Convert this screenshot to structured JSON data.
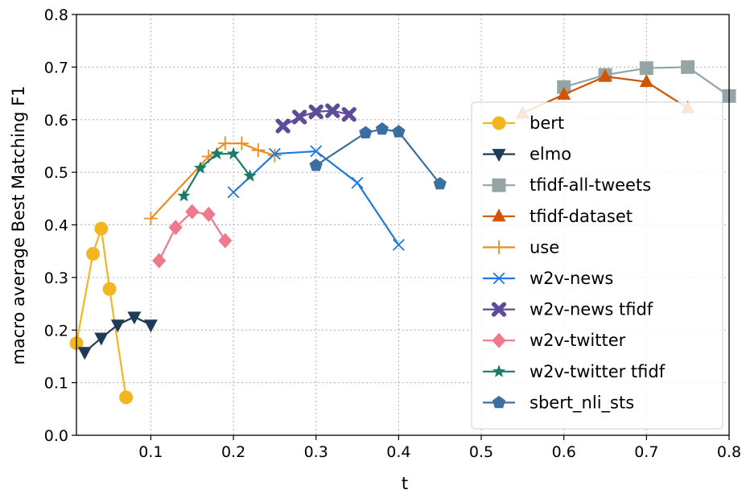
{
  "chart_data": {
    "type": "line",
    "xlabel": "t",
    "ylabel": "macro average Best Matching F1",
    "xlim": [
      0.01,
      0.8
    ],
    "ylim": [
      0.0,
      0.8
    ],
    "xticks": [
      0.1,
      0.2,
      0.3,
      0.4,
      0.5,
      0.6,
      0.7,
      0.8
    ],
    "yticks": [
      0.0,
      0.1,
      0.2,
      0.3,
      0.4,
      0.5,
      0.6,
      0.7,
      0.8
    ],
    "xtick_labels": [
      "0.1",
      "0.2",
      "0.3",
      "0.4",
      "0.5",
      "0.6",
      "0.7",
      "0.8"
    ],
    "ytick_labels": [
      "0.0",
      "0.1",
      "0.2",
      "0.3",
      "0.4",
      "0.5",
      "0.6",
      "0.7",
      "0.8"
    ],
    "grid": true,
    "legend_position": "right",
    "series": [
      {
        "name": "bert",
        "color": "#f2b720",
        "marker": "circle",
        "x": [
          0.01,
          0.03,
          0.04,
          0.05,
          0.07
        ],
        "y": [
          0.175,
          0.345,
          0.393,
          0.278,
          0.072
        ]
      },
      {
        "name": "elmo",
        "color": "#1e3c57",
        "marker": "triangle-down",
        "x": [
          0.02,
          0.04,
          0.06,
          0.08,
          0.1
        ],
        "y": [
          0.158,
          0.185,
          0.21,
          0.225,
          0.21
        ]
      },
      {
        "name": "tfidf-all-tweets",
        "color": "#95a5a6",
        "marker": "square",
        "x": [
          0.6,
          0.65,
          0.7,
          0.75,
          0.8
        ],
        "y": [
          0.662,
          0.685,
          0.698,
          0.7,
          0.645
        ]
      },
      {
        "name": "tfidf-dataset",
        "color": "#d35400",
        "marker": "triangle-up",
        "x": [
          0.55,
          0.6,
          0.65,
          0.7,
          0.75
        ],
        "y": [
          0.612,
          0.648,
          0.682,
          0.672,
          0.622
        ]
      },
      {
        "name": "use",
        "color": "#f08c1e",
        "marker": "plus",
        "x": [
          0.1,
          0.17,
          0.19,
          0.21,
          0.23,
          0.25
        ],
        "y": [
          0.412,
          0.53,
          0.555,
          0.555,
          0.542,
          0.532
        ]
      },
      {
        "name": "w2v-news",
        "color": "#1f77e8",
        "marker": "x",
        "x": [
          0.2,
          0.25,
          0.3,
          0.35,
          0.4
        ],
        "y": [
          0.462,
          0.535,
          0.54,
          0.48,
          0.362
        ]
      },
      {
        "name": "w2v-news tfidf",
        "color": "#5e4b9a",
        "marker": "plus-bold",
        "x": [
          0.26,
          0.28,
          0.3,
          0.32,
          0.34
        ],
        "y": [
          0.588,
          0.605,
          0.615,
          0.617,
          0.61
        ]
      },
      {
        "name": "w2v-twitter",
        "color": "#f0788c",
        "marker": "diamond",
        "x": [
          0.11,
          0.13,
          0.15,
          0.17,
          0.19
        ],
        "y": [
          0.332,
          0.395,
          0.425,
          0.42,
          0.37
        ]
      },
      {
        "name": "w2v-twitter tfidf",
        "color": "#1e7a68",
        "marker": "star",
        "x": [
          0.14,
          0.16,
          0.18,
          0.2,
          0.22
        ],
        "y": [
          0.455,
          0.508,
          0.535,
          0.535,
          0.493
        ]
      },
      {
        "name": "sbert_nli_sts",
        "color": "#3a6f9f",
        "marker": "pentagon",
        "x": [
          0.3,
          0.36,
          0.38,
          0.4,
          0.45
        ],
        "y": [
          0.513,
          0.575,
          0.582,
          0.577,
          0.478
        ]
      }
    ]
  }
}
